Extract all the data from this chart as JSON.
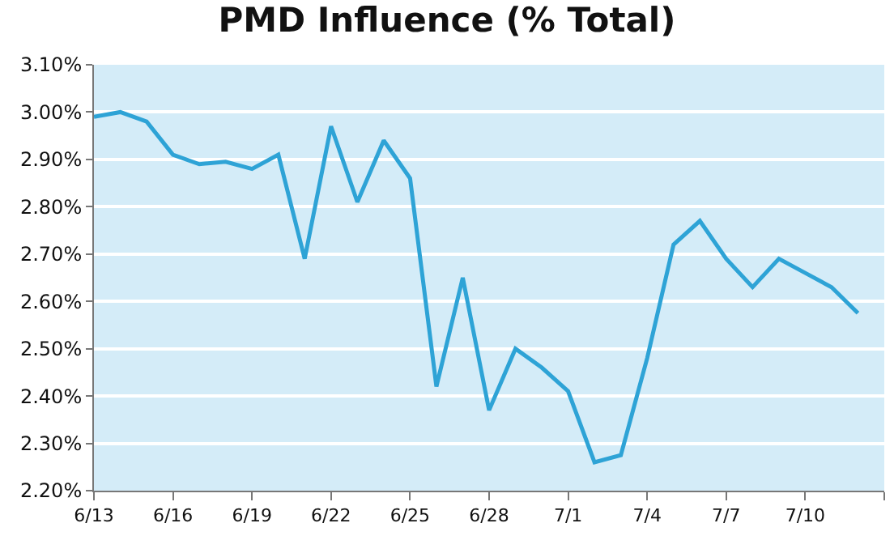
{
  "chart_data": {
    "type": "line",
    "title": "PMD Influence (% Total)",
    "x": [
      "--06-13",
      "--06-14",
      "--06-15",
      "--06-16",
      "--06-17",
      "--06-18",
      "--06-19",
      "--06-20",
      "--06-21",
      "--06-22",
      "--06-23",
      "--06-24",
      "--06-25",
      "--06-26",
      "--06-27",
      "--06-28",
      "--06-29",
      "--06-30",
      "--07-01",
      "--07-02",
      "--07-03",
      "--07-04",
      "--07-05",
      "--07-06",
      "--07-07",
      "--07-08",
      "--07-09",
      "--07-10",
      "--07-11",
      "--07-12"
    ],
    "series": [
      {
        "color": "#2ea3d6",
        "values": [
          2.99,
          3.0,
          2.98,
          2.91,
          2.89,
          2.895,
          2.88,
          2.91,
          2.69,
          2.97,
          2.81,
          2.94,
          2.86,
          2.42,
          2.65,
          2.37,
          2.5,
          2.46,
          2.41,
          2.26,
          2.275,
          2.48,
          2.72,
          2.77,
          2.69,
          2.63,
          2.69,
          2.66,
          2.63,
          2.575
        ]
      }
    ],
    "xlim": [
      "--06-13",
      "--07-13"
    ],
    "xticks": [
      {
        "value": "--06-13",
        "label": "6/13"
      },
      {
        "value": "--06-16",
        "label": "6/16"
      },
      {
        "value": "--06-19",
        "label": "6/19"
      },
      {
        "value": "--06-22",
        "label": "6/22"
      },
      {
        "value": "--06-25",
        "label": "6/25"
      },
      {
        "value": "--06-28",
        "label": "6/28"
      },
      {
        "value": "--07-01",
        "label": "7/1"
      },
      {
        "value": "--07-04",
        "label": "7/4"
      },
      {
        "value": "--07-07",
        "label": "7/7"
      },
      {
        "value": "--07-10",
        "label": "7/10"
      },
      {
        "value": "--07-13",
        "label": null
      }
    ],
    "ylim": [
      2.2,
      3.1
    ],
    "yticks": [
      {
        "value": 2.2,
        "label": "2.20%"
      },
      {
        "value": 2.3,
        "label": "2.30%"
      },
      {
        "value": 2.4,
        "label": "2.40%"
      },
      {
        "value": 2.5,
        "label": "2.50%"
      },
      {
        "value": 2.6,
        "label": "2.60%"
      },
      {
        "value": 2.7,
        "label": "2.70%"
      },
      {
        "value": 2.8,
        "label": "2.80%"
      },
      {
        "value": 2.9,
        "label": "2.90%"
      },
      {
        "value": 3.0,
        "label": "3.00%"
      },
      {
        "value": 3.1,
        "label": "3.10%"
      }
    ],
    "grid": "y",
    "marker": "none",
    "line_style": "solid"
  }
}
